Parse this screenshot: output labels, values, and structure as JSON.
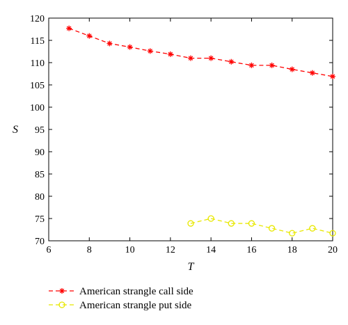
{
  "chart_data": {
    "type": "line",
    "title": "",
    "xlabel": "T",
    "ylabel": "S",
    "xlim": [
      6,
      20
    ],
    "ylim": [
      70,
      120
    ],
    "xticks": [
      6,
      8,
      10,
      12,
      14,
      16,
      18,
      20
    ],
    "yticks": [
      70,
      75,
      80,
      85,
      90,
      95,
      100,
      105,
      110,
      115,
      120
    ],
    "grid": false,
    "legend_position": "below",
    "series": [
      {
        "name": "American strangle call side",
        "color": "#ff0000",
        "line_style": "dashed",
        "marker": "asterisk",
        "x": [
          7,
          8,
          9,
          10,
          11,
          12,
          13,
          14,
          15,
          16,
          17,
          18,
          19,
          20
        ],
        "y": [
          117.7,
          116.0,
          114.3,
          113.5,
          112.6,
          111.9,
          111.0,
          111.0,
          110.2,
          109.4,
          109.4,
          108.5,
          107.7,
          106.9
        ]
      },
      {
        "name": "American strangle put side",
        "color": "#e8e800",
        "line_style": "dashed",
        "marker": "circle",
        "x": [
          13,
          14,
          15,
          16,
          17,
          18,
          19,
          20
        ],
        "y": [
          73.9,
          75.0,
          73.9,
          73.9,
          72.8,
          71.7,
          72.8,
          71.7
        ]
      }
    ]
  }
}
